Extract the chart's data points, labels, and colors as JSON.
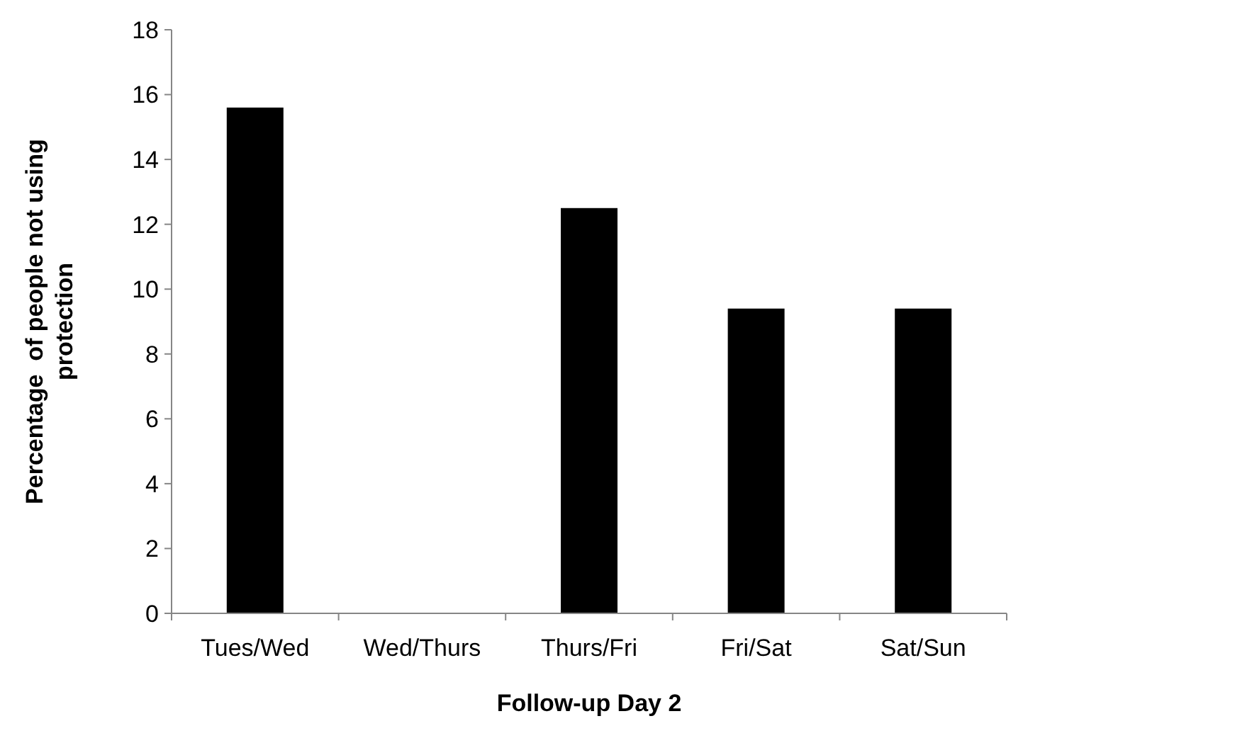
{
  "chart_data": {
    "type": "bar",
    "xlabel": "Follow-up Day 2",
    "ylabel": "Percentage  of people not using protection",
    "categories": [
      "Tues/Wed",
      "Wed/Thurs",
      "Thurs/Fri",
      "Fri/Sat",
      "Sat/Sun"
    ],
    "values": [
      15.6,
      0,
      12.5,
      9.4,
      9.4
    ],
    "color": "#000000",
    "ylim": [
      0,
      18
    ],
    "yticks": [
      0,
      2,
      4,
      6,
      8,
      10,
      12,
      14,
      16,
      18
    ],
    "grid": false
  }
}
